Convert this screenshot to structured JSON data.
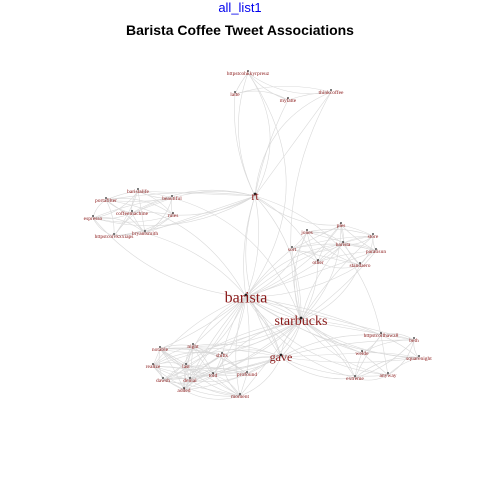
{
  "header": {
    "link_text": "all_list1",
    "title": "Barista Coffee Tweet Associations"
  },
  "chart_data": {
    "type": "network",
    "title": "Barista Coffee Tweet Associations",
    "colors": {
      "node_label": "#8b1a1a",
      "edge": "#d9d9d9",
      "link_text": "#0000ee"
    },
    "nodes": [
      {
        "id": "barista",
        "weight": 5
      },
      {
        "id": "starbucks",
        "weight": 4
      },
      {
        "id": "gave",
        "weight": 3
      },
      {
        "id": "rt",
        "weight": 3
      },
      {
        "id": "httpstcohkkyrpreuz",
        "weight": 1
      },
      {
        "id": "latte",
        "weight": 1
      },
      {
        "id": "mylatte",
        "weight": 1
      },
      {
        "id": "thinkcoffee",
        "weight": 1
      },
      {
        "id": "baristalife",
        "weight": 1
      },
      {
        "id": "portafilter",
        "weight": 1
      },
      {
        "id": "beautiful",
        "weight": 1
      },
      {
        "id": "coffeemachine",
        "weight": 1
      },
      {
        "id": "espresso",
        "weight": 1
      },
      {
        "id": "rules",
        "weight": 1
      },
      {
        "id": "httpstcoivkxxiaps",
        "weight": 1
      },
      {
        "id": "bryantsmith",
        "weight": 1
      },
      {
        "id": "ples",
        "weight": 1
      },
      {
        "id": "jones",
        "weight": 1
      },
      {
        "id": "barista",
        "weight": 1
      },
      {
        "id": "store",
        "weight": 1
      },
      {
        "id": "sort",
        "weight": 1
      },
      {
        "id": "paratisun",
        "weight": 1
      },
      {
        "id": "other",
        "weight": 1
      },
      {
        "id": "standaero",
        "weight": 1
      },
      {
        "id": "notable",
        "weight": 1
      },
      {
        "id": "night",
        "weight": 1
      },
      {
        "id": "shifts",
        "weight": 1
      },
      {
        "id": "realize",
        "weight": 1
      },
      {
        "id": "last",
        "weight": 1
      },
      {
        "id": "dawsh",
        "weight": 1
      },
      {
        "id": "told",
        "weight": 1
      },
      {
        "id": "profound",
        "weight": 1
      },
      {
        "id": "denial",
        "weight": 1
      },
      {
        "id": "added",
        "weight": 1
      },
      {
        "id": "moment",
        "weight": 1
      },
      {
        "id": "httpstcoilhawz8",
        "weight": 1
      },
      {
        "id": "beth",
        "weight": 1
      },
      {
        "id": "welde",
        "weight": 1
      },
      {
        "id": "squarenight",
        "weight": 1
      },
      {
        "id": "anyway",
        "weight": 1
      },
      {
        "id": "extreme",
        "weight": 1
      }
    ]
  }
}
